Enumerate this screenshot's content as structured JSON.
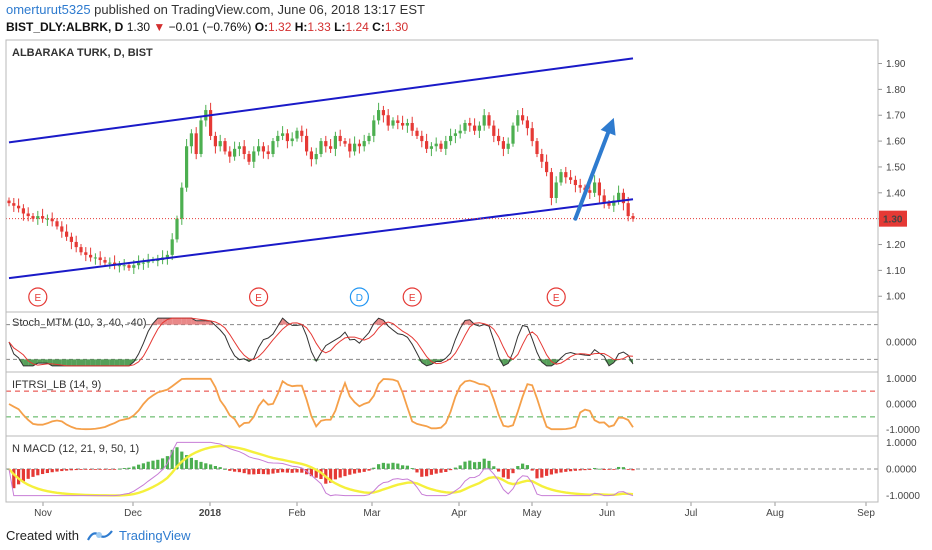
{
  "header": {
    "author": "omerturut5325",
    "published_text": " published on TradingView.com, June 06, 2018 13:17 EST",
    "symbol": "BIST_DLY:ALBRK, D",
    "last": "1.30",
    "change": "−0.01 (−0.76%)",
    "o_label": "O:",
    "o_val": "1.32",
    "h_label": "H:",
    "h_val": "1.33",
    "l_label": "L:",
    "l_val": "1.24",
    "c_label": "C:",
    "c_val": "1.30"
  },
  "footer": {
    "created_with": "Created with",
    "brand": "TradingView"
  },
  "colors": {
    "up": "#4caf50",
    "down": "#e53935",
    "channel": "#1a1ac8",
    "arrow": "#2e7bcf",
    "price_line": "#e53935",
    "stoch_fill_pos": "#e57373",
    "stoch_fill_neg": "#388e3c",
    "iftrsi": "#f5a04a",
    "macd_yellow": "#f5f03c"
  },
  "chart_data": [
    {
      "type": "candlestick",
      "title": "ALBARAKA TURK, D, BIST",
      "x_tick_labels": [
        "Nov",
        "Dec",
        "2018",
        "Feb",
        "Mar",
        "Apr",
        "May",
        "Jun",
        "Jul",
        "Aug",
        "Sep"
      ],
      "y_ticks": [
        "1.90",
        "1.80",
        "1.70",
        "1.60",
        "1.50",
        "1.40",
        "1.30",
        "1.20",
        "1.10",
        "1.00"
      ],
      "ylim": [
        0.97,
        1.96
      ],
      "last_price_label": "1.30",
      "last_price": 1.3,
      "closes": [
        1.36,
        1.35,
        1.34,
        1.32,
        1.31,
        1.3,
        1.31,
        1.3,
        1.3,
        1.29,
        1.27,
        1.25,
        1.23,
        1.21,
        1.19,
        1.17,
        1.16,
        1.15,
        1.15,
        1.14,
        1.13,
        1.13,
        1.12,
        1.12,
        1.12,
        1.11,
        1.12,
        1.13,
        1.13,
        1.14,
        1.14,
        1.14,
        1.15,
        1.16,
        1.22,
        1.3,
        1.42,
        1.58,
        1.63,
        1.55,
        1.68,
        1.72,
        1.62,
        1.58,
        1.6,
        1.56,
        1.54,
        1.57,
        1.58,
        1.55,
        1.52,
        1.56,
        1.58,
        1.56,
        1.55,
        1.6,
        1.62,
        1.63,
        1.6,
        1.61,
        1.64,
        1.62,
        1.56,
        1.53,
        1.55,
        1.6,
        1.58,
        1.57,
        1.62,
        1.6,
        1.59,
        1.56,
        1.59,
        1.58,
        1.6,
        1.62,
        1.68,
        1.72,
        1.7,
        1.66,
        1.68,
        1.67,
        1.66,
        1.67,
        1.64,
        1.62,
        1.6,
        1.57,
        1.58,
        1.59,
        1.57,
        1.6,
        1.62,
        1.63,
        1.64,
        1.67,
        1.66,
        1.64,
        1.66,
        1.7,
        1.66,
        1.62,
        1.6,
        1.57,
        1.59,
        1.66,
        1.7,
        1.68,
        1.65,
        1.6,
        1.55,
        1.52,
        1.48,
        1.38,
        1.44,
        1.48,
        1.46,
        1.45,
        1.43,
        1.42,
        1.41,
        1.4,
        1.44,
        1.39,
        1.36,
        1.35,
        1.37,
        1.4,
        1.36,
        1.31,
        1.3
      ],
      "channel_upper": {
        "from": [
          0,
          1.595
        ],
        "to": [
          130,
          1.92
        ]
      },
      "channel_lower": {
        "from": [
          0,
          1.07
        ],
        "to": [
          130,
          1.375
        ]
      },
      "projection_arrow": {
        "from": [
          118,
          1.3
        ],
        "to": [
          126,
          1.69
        ]
      },
      "event_markers": [
        {
          "label": "E",
          "kind": "earnings",
          "x": 6
        },
        {
          "label": "E",
          "kind": "earnings",
          "x": 52
        },
        {
          "label": "D",
          "kind": "dividend",
          "x": 73
        },
        {
          "label": "E",
          "kind": "earnings",
          "x": 84
        },
        {
          "label": "E",
          "kind": "earnings",
          "x": 114
        }
      ]
    },
    {
      "type": "area",
      "title": "Stoch_MTM (10, 3, 40, -40)",
      "y_ticks": [
        "0.0000"
      ],
      "ylim": [
        -60,
        60
      ]
    },
    {
      "type": "line",
      "title": "IFTRSI_LB (14, 9)",
      "y_ticks": [
        "1.0000",
        "0.0000",
        "-1.0000"
      ],
      "ylim": [
        -1.05,
        1.05
      ],
      "ref_lines": [
        0.5,
        -0.5
      ]
    },
    {
      "type": "bar",
      "title": "N MACD (12, 21, 9, 50, 1)",
      "y_ticks": [
        "1.0000",
        "0.0000",
        "-1.0000"
      ],
      "ylim": [
        -1.05,
        1.05
      ]
    }
  ]
}
